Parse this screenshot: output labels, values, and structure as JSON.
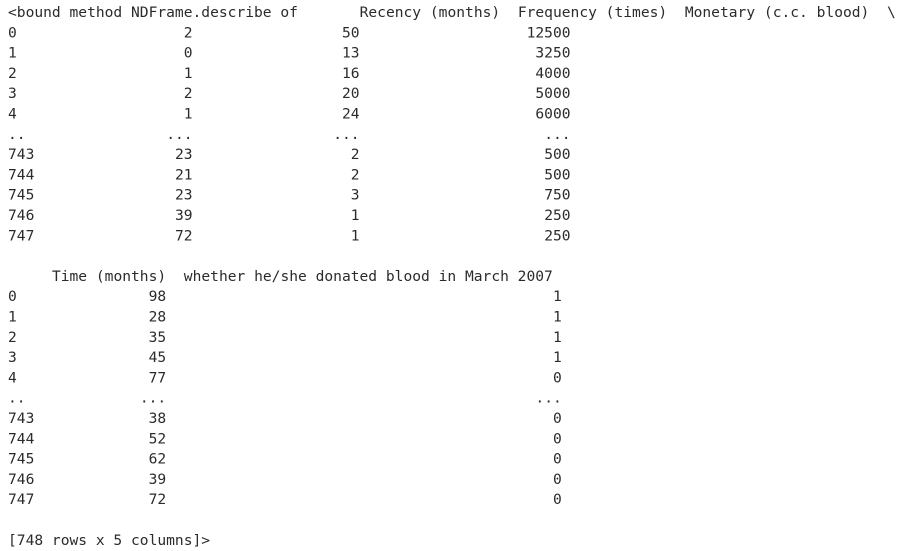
{
  "blocks": [
    {
      "header": [
        "<bound method NDFrame.describe of",
        "Recency (months)",
        "Frequency (times)",
        "Monetary (c.c. blood)",
        "\\"
      ],
      "rows": [
        [
          0,
          2,
          50,
          12500
        ],
        [
          1,
          0,
          13,
          3250
        ],
        [
          2,
          1,
          16,
          4000
        ],
        [
          3,
          2,
          20,
          5000
        ],
        [
          4,
          1,
          24,
          6000
        ],
        [
          "..",
          "...",
          "...",
          "..."
        ],
        [
          743,
          23,
          2,
          500
        ],
        [
          744,
          21,
          2,
          500
        ],
        [
          745,
          23,
          3,
          750
        ],
        [
          746,
          39,
          1,
          250
        ],
        [
          747,
          72,
          1,
          250
        ]
      ]
    },
    {
      "header": [
        "Time (months)",
        "whether he/she donated blood in March 2007"
      ],
      "rows": [
        [
          0,
          98,
          1
        ],
        [
          1,
          28,
          1
        ],
        [
          2,
          35,
          1
        ],
        [
          3,
          45,
          1
        ],
        [
          4,
          77,
          0
        ],
        [
          "..",
          "...",
          "..."
        ],
        [
          743,
          38,
          0
        ],
        [
          744,
          52,
          0
        ],
        [
          745,
          62,
          0
        ],
        [
          746,
          39,
          0
        ],
        [
          747,
          72,
          0
        ]
      ]
    }
  ],
  "footer": "[748 rows x 5 columns]>"
}
